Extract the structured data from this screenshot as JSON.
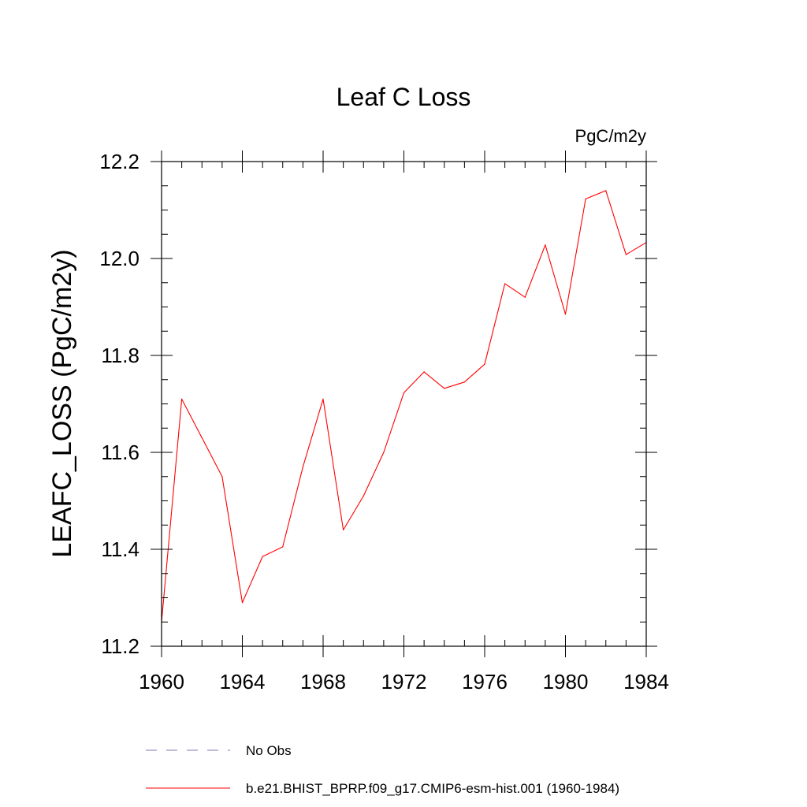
{
  "chart_data": {
    "type": "line",
    "title": "Leaf C Loss",
    "units_label": "PgC/m2y",
    "ylabel": "LEAFC_LOSS  (PgC/m2y)",
    "xlabel": "",
    "xlim": [
      1960,
      1984
    ],
    "ylim": [
      11.2,
      12.2
    ],
    "x_ticks": [
      1960,
      1964,
      1968,
      1972,
      1976,
      1980,
      1984
    ],
    "y_ticks": [
      11.2,
      11.4,
      11.6,
      11.8,
      12.0,
      12.2
    ],
    "x_tick_labels": [
      "1960",
      "1964",
      "1968",
      "1972",
      "1976",
      "1980",
      "1984"
    ],
    "y_tick_labels": [
      "11.2",
      "11.4",
      "11.6",
      "11.8",
      "12.0",
      "12.2"
    ],
    "x_minor_step": 1,
    "y_minor_step": 0.05,
    "grid": false,
    "legend_position": "bottom",
    "series": [
      {
        "name": "No Obs",
        "color": "#7b78b8",
        "dash": "dashed",
        "x": [],
        "values": []
      },
      {
        "name": "b.e21.BHIST_BPRP.f09_g17.CMIP6-esm-hist.001 (1960-1984)",
        "color": "#ff0000",
        "dash": "solid",
        "x": [
          1960,
          1961,
          1962,
          1963,
          1964,
          1965,
          1966,
          1967,
          1968,
          1969,
          1970,
          1971,
          1972,
          1973,
          1974,
          1975,
          1976,
          1977,
          1978,
          1979,
          1980,
          1981,
          1982,
          1983,
          1984
        ],
        "values": [
          11.25,
          11.71,
          11.63,
          11.55,
          11.29,
          11.385,
          11.405,
          11.57,
          11.71,
          11.44,
          11.51,
          11.6,
          11.723,
          11.766,
          11.732,
          11.745,
          11.782,
          11.948,
          11.92,
          12.028,
          11.885,
          12.123,
          12.14,
          12.008,
          12.033
        ]
      }
    ]
  }
}
